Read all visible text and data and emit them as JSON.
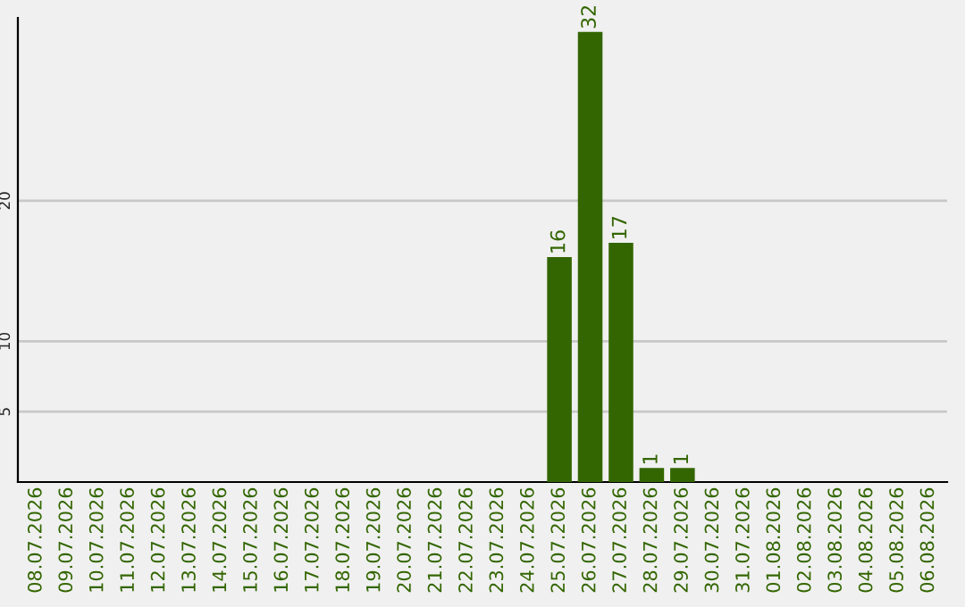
{
  "chart_data": {
    "type": "bar",
    "categories": [
      "08.07.2026",
      "09.07.2026",
      "10.07.2026",
      "11.07.2026",
      "12.07.2026",
      "13.07.2026",
      "14.07.2026",
      "15.07.2026",
      "16.07.2026",
      "17.07.2026",
      "18.07.2026",
      "19.07.2026",
      "20.07.2026",
      "21.07.2026",
      "22.07.2026",
      "23.07.2026",
      "24.07.2026",
      "25.07.2026",
      "26.07.2026",
      "27.07.2026",
      "28.07.2026",
      "29.07.2026",
      "30.07.2026",
      "31.07.2026",
      "01.08.2026",
      "02.08.2026",
      "03.08.2026",
      "04.08.2026",
      "05.08.2026",
      "06.08.2026"
    ],
    "values": [
      0,
      0,
      0,
      0,
      0,
      0,
      0,
      0,
      0,
      0,
      0,
      0,
      0,
      0,
      0,
      0,
      0,
      16,
      32,
      17,
      1,
      1,
      0,
      0,
      0,
      0,
      0,
      0,
      0,
      0
    ],
    "value_labels": [
      null,
      null,
      null,
      null,
      null,
      null,
      null,
      null,
      null,
      null,
      null,
      null,
      null,
      null,
      null,
      null,
      null,
      "16",
      "32",
      "17",
      "1",
      "1",
      null,
      null,
      null,
      null,
      null,
      null,
      null,
      null
    ],
    "color": "#336600",
    "ylim": [
      0,
      33
    ],
    "yticks": [
      5,
      10,
      20
    ],
    "grid": "y"
  }
}
